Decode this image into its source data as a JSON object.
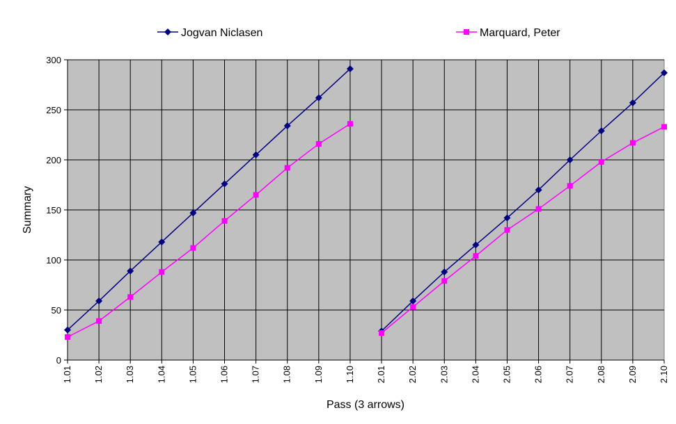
{
  "chart_data": {
    "type": "line",
    "xlabel": "Pass (3 arrows)",
    "ylabel": "Summary",
    "ylim": [
      0,
      300
    ],
    "y_ticks": [
      0,
      50,
      100,
      150,
      200,
      250,
      300
    ],
    "grid": true,
    "legend_position": "top",
    "plot_background": "#c0c0c0",
    "categories": [
      "1.01",
      "1.02",
      "1.03",
      "1.04",
      "1.05",
      "1.06",
      "1.07",
      "1.08",
      "1.09",
      "1.10",
      "2.01",
      "2.02",
      "2.03",
      "2.04",
      "2.05",
      "2.06",
      "2.07",
      "2.08",
      "2.09",
      "2.10"
    ],
    "series": [
      {
        "name": "Jogvan Niclasen",
        "color": "#000080",
        "marker": "diamond",
        "values": [
          30,
          59,
          89,
          118,
          147,
          176,
          205,
          234,
          262,
          291,
          29,
          59,
          88,
          115,
          142,
          170,
          200,
          229,
          257,
          287
        ]
      },
      {
        "name": "Marquard, Peter",
        "color": "#ff00ff",
        "marker": "square",
        "values": [
          23,
          39,
          63,
          88,
          112,
          139,
          165,
          192,
          216,
          236,
          27,
          53,
          79,
          104,
          130,
          151,
          174,
          198,
          217,
          233
        ]
      }
    ]
  }
}
